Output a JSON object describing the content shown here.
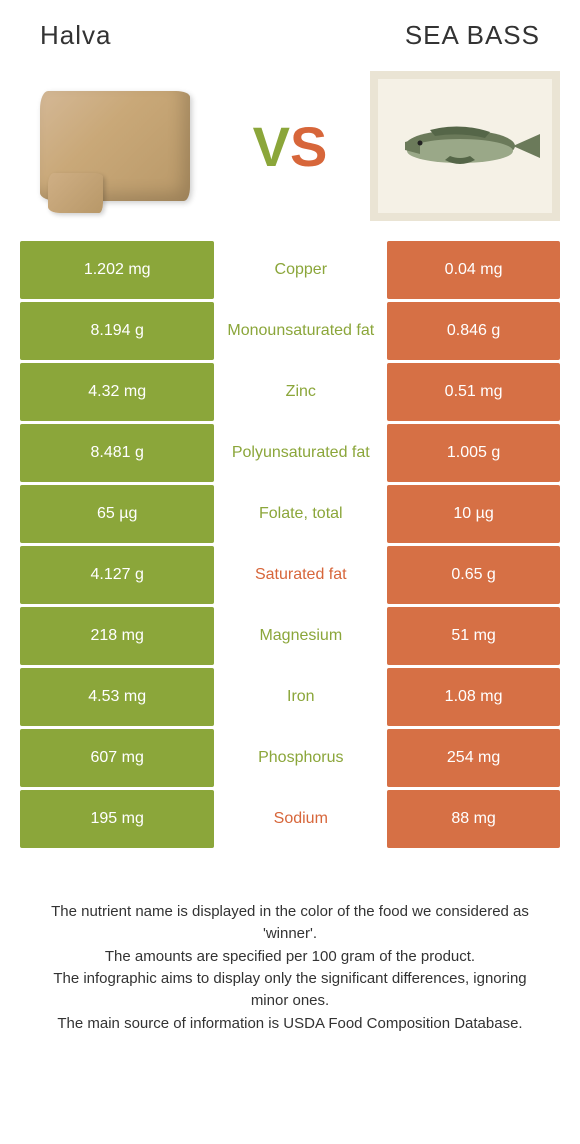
{
  "header": {
    "left_title": "Halva",
    "right_title": "SEA BASS"
  },
  "vs": {
    "v": "V",
    "s": "S"
  },
  "colors": {
    "green": "#8ba63a",
    "orange": "#d67045",
    "orange_dark": "#d7663a",
    "text_green": "#8ba63a",
    "text_orange": "#d7663a"
  },
  "rows": [
    {
      "left": "1.202 mg",
      "label": "Copper",
      "right": "0.04 mg",
      "winner": "left"
    },
    {
      "left": "8.194 g",
      "label": "Monounsaturated fat",
      "right": "0.846 g",
      "winner": "left"
    },
    {
      "left": "4.32 mg",
      "label": "Zinc",
      "right": "0.51 mg",
      "winner": "left"
    },
    {
      "left": "8.481 g",
      "label": "Polyunsaturated fat",
      "right": "1.005 g",
      "winner": "left"
    },
    {
      "left": "65 µg",
      "label": "Folate, total",
      "right": "10 µg",
      "winner": "left"
    },
    {
      "left": "4.127 g",
      "label": "Saturated fat",
      "right": "0.65 g",
      "winner": "right"
    },
    {
      "left": "218 mg",
      "label": "Magnesium",
      "right": "51 mg",
      "winner": "left"
    },
    {
      "left": "4.53 mg",
      "label": "Iron",
      "right": "1.08 mg",
      "winner": "left"
    },
    {
      "left": "607 mg",
      "label": "Phosphorus",
      "right": "254 mg",
      "winner": "left"
    },
    {
      "left": "195 mg",
      "label": "Sodium",
      "right": "88 mg",
      "winner": "right"
    }
  ],
  "footer": {
    "line1": "The nutrient name is displayed in the color of the food we considered as 'winner'.",
    "line2": "The amounts are specified per 100 gram of the product.",
    "line3": "The infographic aims to display only the significant differences, ignoring minor ones.",
    "line4": "The main source of information is USDA Food Composition Database."
  }
}
